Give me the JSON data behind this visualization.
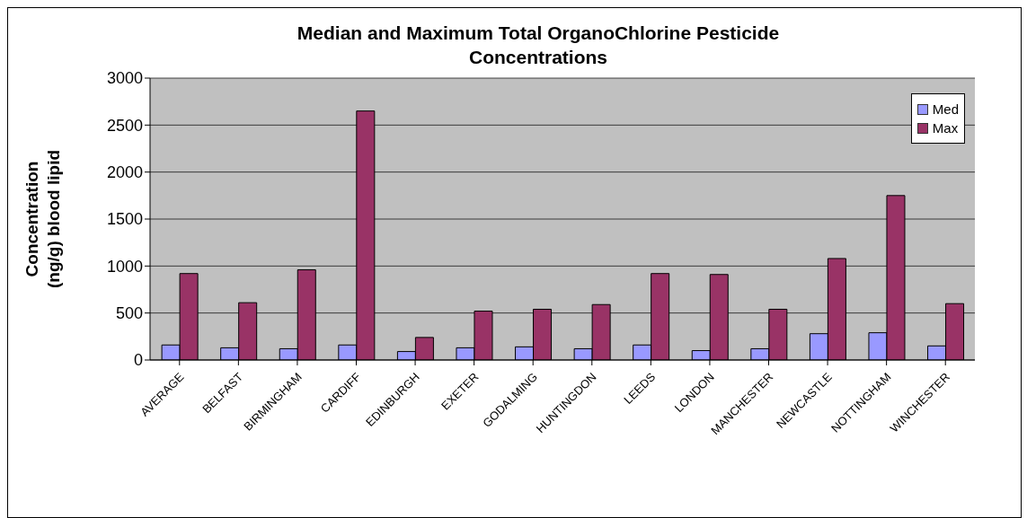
{
  "chart_data": {
    "type": "bar",
    "title": "Median and Maximum Total OrganoChlorine Pesticide Concentrations",
    "ylabel": "Concentration (ng/g) blood lipid",
    "categories": [
      "AVERAGE",
      "BELFAST",
      "BIRMINGHAM",
      "CARDIFF",
      "EDINBURGH",
      "EXETER",
      "GODALMING",
      "HUNTINGDON",
      "LEEDS",
      "LONDON",
      "MANCHESTER",
      "NEWCASTLE",
      "NOTTINGHAM",
      "WINCHESTER"
    ],
    "series": [
      {
        "name": "Med",
        "color": "#9999ff",
        "values": [
          160,
          130,
          120,
          160,
          90,
          130,
          140,
          120,
          160,
          100,
          120,
          280,
          290,
          150
        ]
      },
      {
        "name": "Max",
        "color": "#993366",
        "values": [
          920,
          610,
          960,
          2650,
          240,
          520,
          540,
          590,
          920,
          910,
          540,
          1080,
          1750,
          600
        ]
      }
    ],
    "ylim": [
      0,
      3000
    ],
    "yticks": [
      0,
      500,
      1000,
      1500,
      2000,
      2500,
      3000
    ],
    "grid": "y",
    "legend": "top right"
  }
}
